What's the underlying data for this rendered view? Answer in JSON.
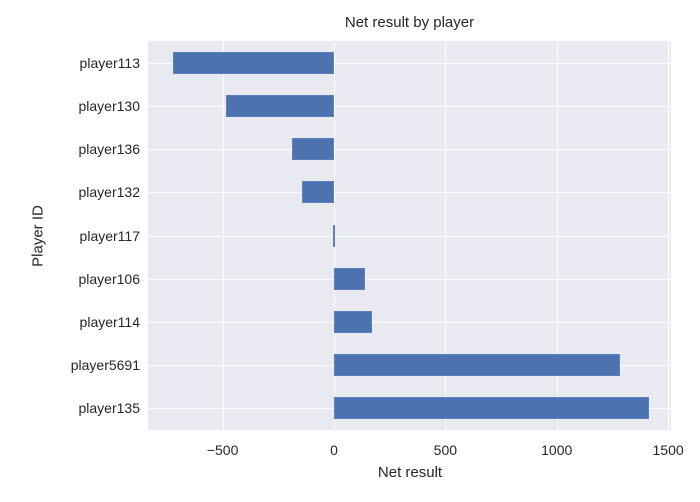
{
  "chart_data": {
    "type": "bar",
    "orientation": "horizontal",
    "title": "Net result by player",
    "xlabel": "Net result",
    "ylabel": "Player ID",
    "categories": [
      "player113",
      "player130",
      "player136",
      "player132",
      "player117",
      "player106",
      "player114",
      "player5691",
      "player135"
    ],
    "values": [
      -723,
      -485,
      -189,
      -144,
      -3,
      139,
      171,
      1285,
      1415
    ],
    "xlim": [
      -835,
      1513
    ],
    "xticks": [
      -500,
      0,
      500,
      1000,
      1500
    ],
    "xtick_labels": [
      "−500",
      "0",
      "500",
      "1000",
      "1500"
    ],
    "grid": true,
    "legend": null,
    "bar_color": "#4c72b0",
    "background_color": "#e9e9f2"
  }
}
